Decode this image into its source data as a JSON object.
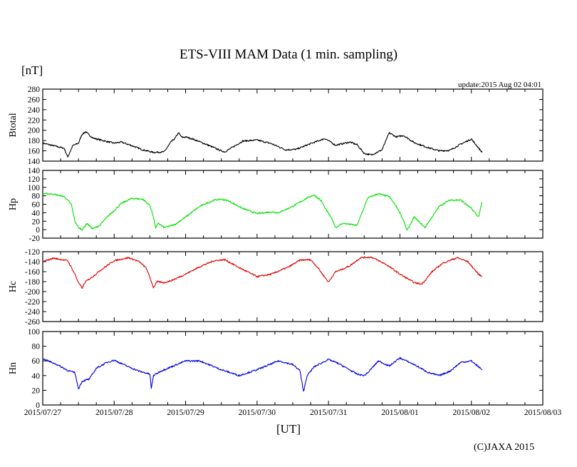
{
  "title": "ETS-VIII MAM Data (1 min. sampling)",
  "unit_label": "[nT]",
  "update_text": "update:2015 Aug 02 04:01",
  "x_axis_label": "[UT]",
  "copyright": "(C)JAXA 2015",
  "chart_data": {
    "type": "line",
    "title": "ETS-VIII MAM Data (1 min. sampling)",
    "xlabel": "[UT]",
    "x_units": "days since 2015/07/27 00:00 UT",
    "xlim": [
      0,
      7
    ],
    "x_tick_labels": [
      "2015/07/27",
      "2015/07/28",
      "2015/07/29",
      "2015/07/30",
      "2015/07/31",
      "2015/08/01",
      "2015/08/02",
      "2015/08/03"
    ],
    "x_minor_ticks_per_day": 4,
    "grid": false,
    "panels": [
      {
        "ylabel": "Btotal",
        "color": "#000000",
        "ylim": [
          140,
          280
        ],
        "yticks": [
          "280",
          "260",
          "240",
          "220",
          "200",
          "180",
          "160",
          "140"
        ],
        "x": [
          0,
          0.15,
          0.3,
          0.35,
          0.42,
          0.5,
          0.55,
          0.6,
          0.7,
          0.9,
          1.0,
          1.1,
          1.25,
          1.4,
          1.55,
          1.7,
          1.8,
          1.85,
          1.9,
          1.95,
          2.0,
          2.1,
          2.3,
          2.5,
          2.55,
          2.8,
          3.0,
          3.2,
          3.4,
          3.55,
          3.75,
          3.95,
          4.1,
          4.3,
          4.4,
          4.5,
          4.6,
          4.75,
          4.85,
          4.95,
          5.05,
          5.2,
          5.4,
          5.55,
          5.7,
          5.85,
          6.0,
          6.15
        ],
        "y": [
          175,
          170,
          165,
          148,
          170,
          175,
          192,
          197,
          185,
          178,
          175,
          177,
          170,
          162,
          157,
          158,
          178,
          184,
          195,
          186,
          187,
          183,
          172,
          160,
          158,
          179,
          181,
          174,
          162,
          163,
          174,
          184,
          171,
          177,
          172,
          155,
          152,
          162,
          195,
          187,
          190,
          176,
          166,
          160,
          161,
          173,
          183,
          157
        ]
      },
      {
        "ylabel": "Hp",
        "color": "#00e000",
        "ylim": [
          -20,
          140
        ],
        "yticks": [
          "140",
          "120",
          "100",
          "80",
          "60",
          "40",
          "20",
          "0",
          "-20"
        ],
        "x": [
          0,
          0.15,
          0.3,
          0.4,
          0.45,
          0.5,
          0.55,
          0.62,
          0.7,
          0.8,
          0.9,
          1.0,
          1.1,
          1.25,
          1.4,
          1.5,
          1.55,
          1.58,
          1.62,
          1.7,
          1.85,
          2.0,
          2.2,
          2.4,
          2.5,
          2.6,
          2.8,
          3.0,
          3.2,
          3.3,
          3.5,
          3.7,
          3.8,
          3.9,
          3.95,
          4.05,
          4.1,
          4.2,
          4.4,
          4.55,
          4.7,
          4.85,
          4.95,
          5.0,
          5.05,
          5.1,
          5.2,
          5.35,
          5.55,
          5.7,
          5.85,
          6.0,
          6.1,
          6.15
        ],
        "y": [
          85,
          84,
          78,
          60,
          20,
          5,
          0,
          15,
          2,
          10,
          30,
          45,
          62,
          74,
          72,
          57,
          30,
          5,
          15,
          5,
          12,
          30,
          55,
          70,
          72,
          68,
          50,
          38,
          42,
          40,
          55,
          75,
          82,
          68,
          52,
          25,
          5,
          15,
          10,
          75,
          85,
          78,
          55,
          40,
          22,
          -2,
          30,
          5,
          55,
          70,
          70,
          50,
          30,
          65
        ]
      },
      {
        "ylabel": "Hc",
        "color": "#e00000",
        "ylim": [
          -260,
          -120
        ],
        "yticks": [
          "-120",
          "-140",
          "-160",
          "-180",
          "-200",
          "-220",
          "-240",
          "-260"
        ],
        "x": [
          0,
          0.15,
          0.35,
          0.45,
          0.5,
          0.55,
          0.6,
          0.7,
          0.8,
          0.9,
          1.0,
          1.2,
          1.35,
          1.45,
          1.5,
          1.55,
          1.6,
          1.7,
          1.8,
          2.0,
          2.2,
          2.4,
          2.55,
          2.75,
          3.0,
          3.2,
          3.45,
          3.6,
          3.75,
          3.85,
          4.0,
          4.1,
          4.2,
          4.3,
          4.45,
          4.6,
          4.8,
          5.0,
          5.2,
          5.3,
          5.35,
          5.45,
          5.6,
          5.8,
          5.95,
          6.1,
          6.15
        ],
        "y": [
          -140,
          -133,
          -138,
          -165,
          -182,
          -193,
          -180,
          -170,
          -158,
          -148,
          -138,
          -132,
          -140,
          -153,
          -172,
          -192,
          -180,
          -182,
          -178,
          -165,
          -150,
          -138,
          -136,
          -152,
          -170,
          -165,
          -150,
          -137,
          -136,
          -152,
          -181,
          -160,
          -155,
          -148,
          -132,
          -131,
          -145,
          -165,
          -182,
          -185,
          -178,
          -160,
          -143,
          -132,
          -140,
          -165,
          -170
        ]
      },
      {
        "ylabel": "Hn",
        "color": "#0000e0",
        "ylim": [
          0,
          100
        ],
        "yticks": [
          "100",
          "80",
          "60",
          "40",
          "20",
          "0"
        ],
        "x": [
          0,
          0.2,
          0.35,
          0.45,
          0.5,
          0.55,
          0.6,
          0.65,
          0.75,
          0.9,
          1.0,
          1.2,
          1.35,
          1.5,
          1.52,
          1.55,
          1.65,
          1.8,
          2.0,
          2.2,
          2.5,
          2.75,
          3.0,
          3.3,
          3.5,
          3.6,
          3.65,
          3.7,
          3.8,
          4.0,
          4.15,
          4.4,
          4.5,
          4.55,
          4.7,
          4.85,
          5.0,
          5.2,
          5.4,
          5.55,
          5.7,
          5.85,
          6.0,
          6.15
        ],
        "y": [
          63,
          55,
          47,
          44,
          22,
          32,
          34,
          35,
          50,
          58,
          61,
          52,
          46,
          42,
          22,
          40,
          46,
          52,
          60,
          60,
          48,
          40,
          48,
          60,
          55,
          47,
          18,
          40,
          52,
          62,
          56,
          42,
          40,
          44,
          60,
          53,
          64,
          55,
          44,
          40,
          46,
          58,
          60,
          48
        ]
      }
    ]
  }
}
